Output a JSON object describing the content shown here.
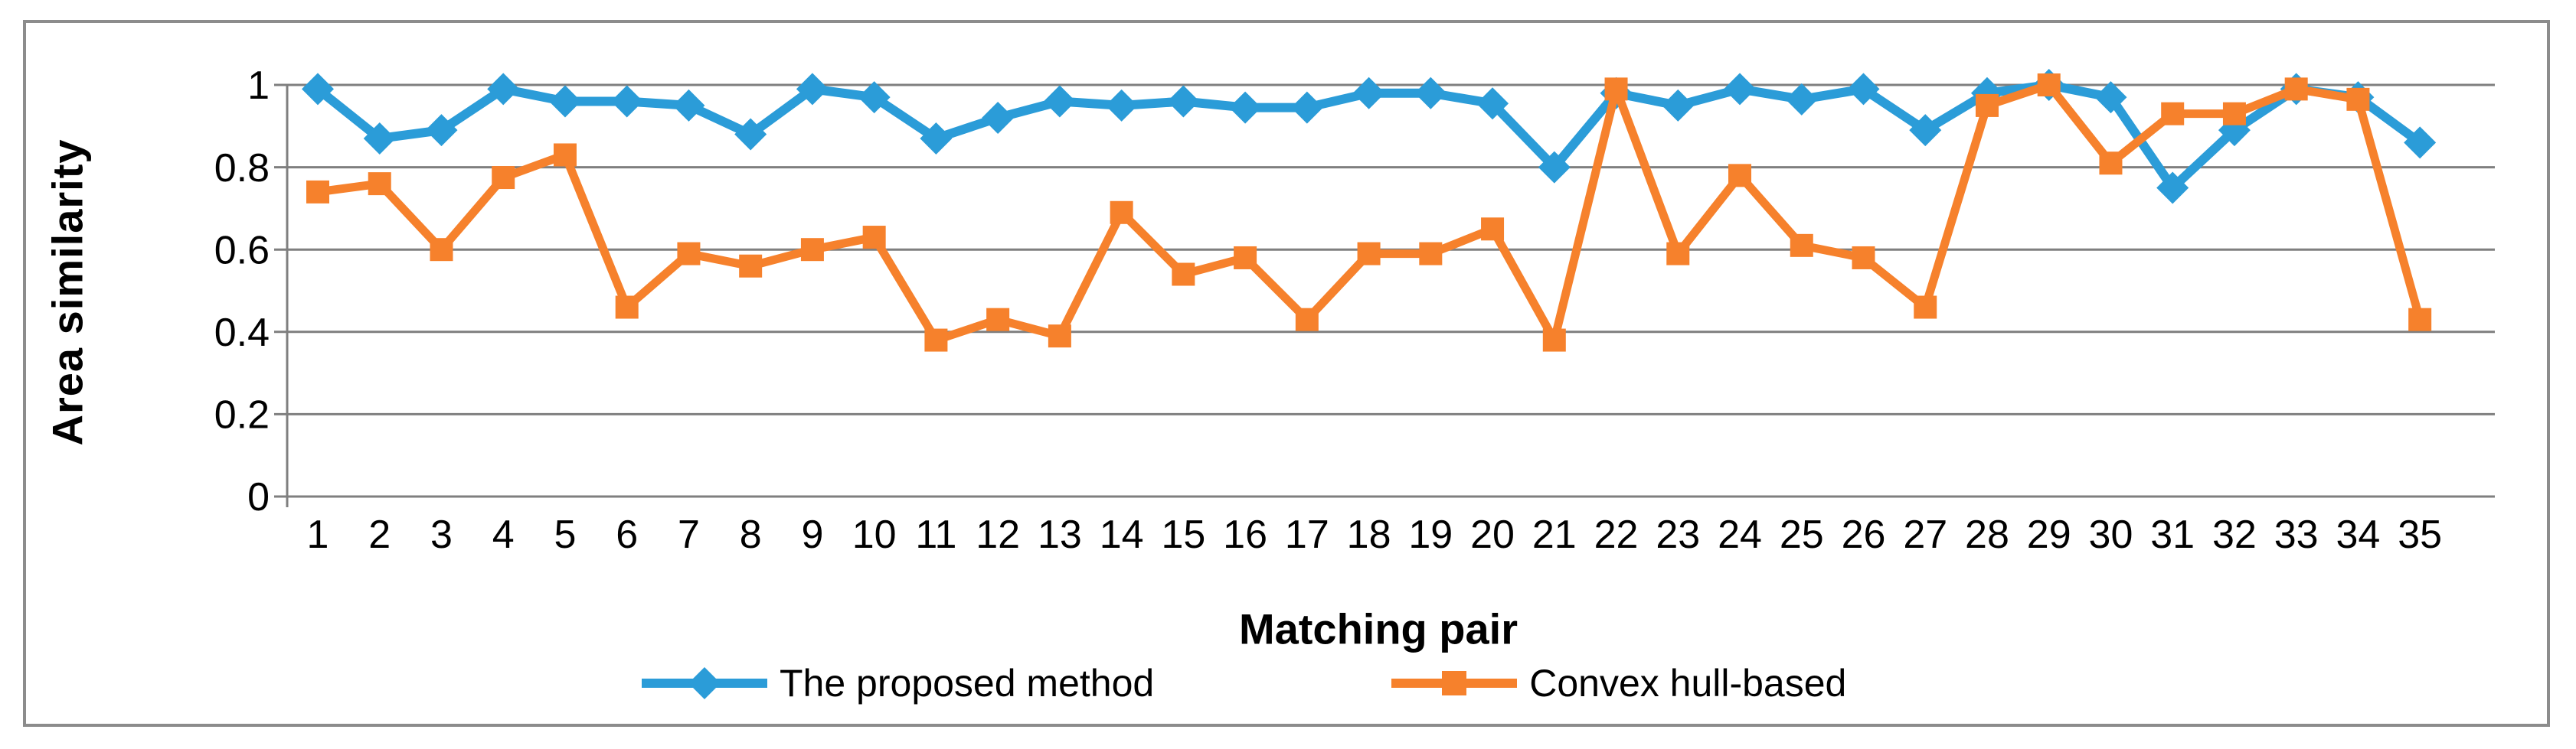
{
  "figure": {
    "border_color": "#8c8c8c",
    "background": "#ffffff"
  },
  "chart_data": {
    "type": "line",
    "title": "",
    "xlabel": "Matching pair",
    "ylabel": "Area similarity",
    "x": [
      1,
      2,
      3,
      4,
      5,
      6,
      7,
      8,
      9,
      10,
      11,
      12,
      13,
      14,
      15,
      16,
      17,
      18,
      19,
      20,
      21,
      22,
      23,
      24,
      25,
      26,
      27,
      28,
      29,
      30,
      31,
      32,
      33,
      34,
      35
    ],
    "x_tick_labels": [
      "1",
      "2",
      "3",
      "4",
      "5",
      "6",
      "7",
      "8",
      "9",
      "10",
      "11",
      "12",
      "13",
      "14",
      "15",
      "16",
      "17",
      "18",
      "19",
      "20",
      "21",
      "22",
      "23",
      "24",
      "25",
      "26",
      "27",
      "28",
      "29",
      "30",
      "31",
      "32",
      "33",
      "34",
      "35"
    ],
    "ylim": [
      0,
      1
    ],
    "y_ticks": [
      0,
      0.2,
      0.4,
      0.6,
      0.8,
      1
    ],
    "y_tick_labels": [
      "0",
      "0.2",
      "0.4",
      "0.6",
      "0.8",
      "1"
    ],
    "grid": true,
    "legend_position": "bottom",
    "gridline_color": "#7f7f7f",
    "series": [
      {
        "name": "The proposed method",
        "color": "#2B9CD8",
        "marker": "diamond",
        "values": [
          0.99,
          0.87,
          0.89,
          0.99,
          0.96,
          0.96,
          0.95,
          0.88,
          0.99,
          0.97,
          0.87,
          0.92,
          0.96,
          0.95,
          0.96,
          0.945,
          0.945,
          0.98,
          0.98,
          0.955,
          0.8,
          0.98,
          0.95,
          0.99,
          0.965,
          0.99,
          0.89,
          0.98,
          1.0,
          0.97,
          0.75,
          0.89,
          0.99,
          0.97,
          0.86
        ]
      },
      {
        "name": "Convex hull-based",
        "color": "#F6812C",
        "marker": "square",
        "values": [
          0.74,
          0.76,
          0.6,
          0.775,
          0.83,
          0.46,
          0.59,
          0.56,
          0.6,
          0.63,
          0.38,
          0.43,
          0.39,
          0.69,
          0.54,
          0.58,
          0.43,
          0.59,
          0.59,
          0.65,
          0.38,
          0.99,
          0.59,
          0.78,
          0.61,
          0.58,
          0.46,
          0.95,
          1.0,
          0.81,
          0.93,
          0.93,
          0.99,
          0.965,
          0.43
        ]
      }
    ]
  }
}
